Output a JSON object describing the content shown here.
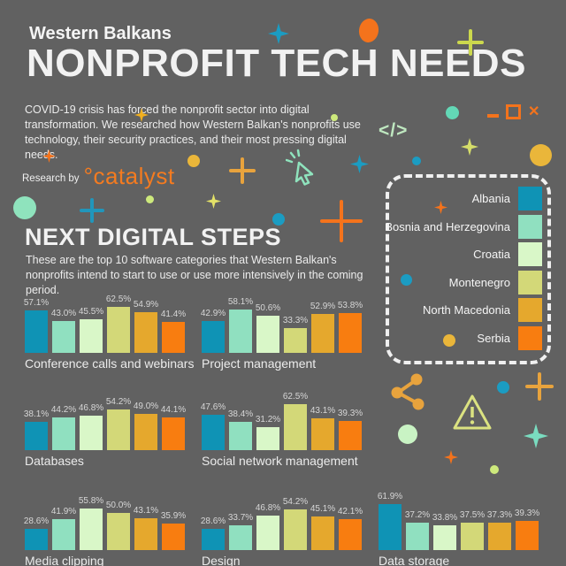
{
  "header": {
    "kicker": "Western Balkans",
    "title": "NONPROFIT TECH NEEDS",
    "intro": "COVID-19 crisis has forced the nonprofit sector into digital transformation. We researched how Western Balkan's nonprofits use technology, their security practices, and their most pressing digital needs.",
    "research_by": "Research by",
    "brand": "°catalyst"
  },
  "section": {
    "title": "NEXT DIGITAL STEPS",
    "subtitle": "These are the top 10 software categories that Western Balkan's nonprofits intend to start to use or use more intensively in the coming period."
  },
  "legend": {
    "items": [
      {
        "label": "Albania",
        "color": "#0f93b5"
      },
      {
        "label": "Bosnia and Herzegovina",
        "color": "#90e0c0"
      },
      {
        "label": "Croatia",
        "color": "#d9f7c8"
      },
      {
        "label": "Montenegro",
        "color": "#d3d878"
      },
      {
        "label": "North Macedonia",
        "color": "#e5a82d"
      },
      {
        "label": "Serbia",
        "color": "#f87d10"
      }
    ]
  },
  "icons": {
    "close_glyph": "✕",
    "code_glyph": "</>"
  },
  "chart_data": [
    {
      "type": "bar",
      "title": "Conference calls and webinars",
      "unit": "%",
      "ylim": [
        0,
        70
      ],
      "categories": [
        "Albania",
        "Bosnia and Herzegovina",
        "Croatia",
        "Montenegro",
        "North Macedonia",
        "Serbia"
      ],
      "values": [
        57.1,
        43.0,
        45.5,
        62.5,
        54.9,
        41.4
      ],
      "labels": [
        "57.1%",
        "43.0%",
        "45.5%",
        "62.5%",
        "54.9%",
        "41.4%"
      ]
    },
    {
      "type": "bar",
      "title": "Project management",
      "unit": "%",
      "ylim": [
        0,
        70
      ],
      "categories": [
        "Albania",
        "Bosnia and Herzegovina",
        "Croatia",
        "Montenegro",
        "North Macedonia",
        "Serbia"
      ],
      "values": [
        42.9,
        58.1,
        50.6,
        33.3,
        52.9,
        53.8
      ],
      "labels": [
        "42.9%",
        "58.1%",
        "50.6%",
        "33.3%",
        "52.9%",
        "53.8%"
      ]
    },
    {
      "type": "bar",
      "title": "Databases",
      "unit": "%",
      "ylim": [
        0,
        70
      ],
      "categories": [
        "Albania",
        "Bosnia and Herzegovina",
        "Croatia",
        "Montenegro",
        "North Macedonia",
        "Serbia"
      ],
      "values": [
        38.1,
        44.2,
        46.8,
        54.2,
        49.0,
        44.1
      ],
      "labels": [
        "38.1%",
        "44.2%",
        "46.8%",
        "54.2%",
        "49.0%",
        "44.1%"
      ]
    },
    {
      "type": "bar",
      "title": "Social network management",
      "unit": "%",
      "ylim": [
        0,
        70
      ],
      "categories": [
        "Albania",
        "Bosnia and Herzegovina",
        "Croatia",
        "Montenegro",
        "North Macedonia",
        "Serbia"
      ],
      "values": [
        47.6,
        38.4,
        31.2,
        62.5,
        43.1,
        39.3
      ],
      "labels": [
        "47.6%",
        "38.4%",
        "31.2%",
        "62.5%",
        "43.1%",
        "39.3%"
      ]
    },
    {
      "type": "bar",
      "title": "Media clipping",
      "unit": "%",
      "ylim": [
        0,
        70
      ],
      "categories": [
        "Albania",
        "Bosnia and Herzegovina",
        "Croatia",
        "Montenegro",
        "North Macedonia",
        "Serbia"
      ],
      "values": [
        28.6,
        41.9,
        55.8,
        50.0,
        43.1,
        35.9
      ],
      "labels": [
        "28.6%",
        "41.9%",
        "55.8%",
        "50.0%",
        "43.1%",
        "35.9%"
      ]
    },
    {
      "type": "bar",
      "title": "Design",
      "unit": "%",
      "ylim": [
        0,
        70
      ],
      "categories": [
        "Albania",
        "Bosnia and Herzegovina",
        "Croatia",
        "Montenegro",
        "North Macedonia",
        "Serbia"
      ],
      "values": [
        28.6,
        33.7,
        46.8,
        54.2,
        45.1,
        42.1
      ],
      "labels": [
        "28.6%",
        "33.7%",
        "46.8%",
        "54.2%",
        "45.1%",
        "42.1%"
      ]
    },
    {
      "type": "bar",
      "title": "Data storage",
      "unit": "%",
      "ylim": [
        0,
        70
      ],
      "categories": [
        "Albania",
        "Bosnia and Herzegovina",
        "Croatia",
        "Montenegro",
        "North Macedonia",
        "Serbia"
      ],
      "values": [
        61.9,
        37.2,
        33.8,
        37.5,
        37.3,
        39.3
      ],
      "labels": [
        "61.9%",
        "37.2%",
        "33.8%",
        "37.5%",
        "37.3%",
        "39.3%"
      ]
    }
  ]
}
